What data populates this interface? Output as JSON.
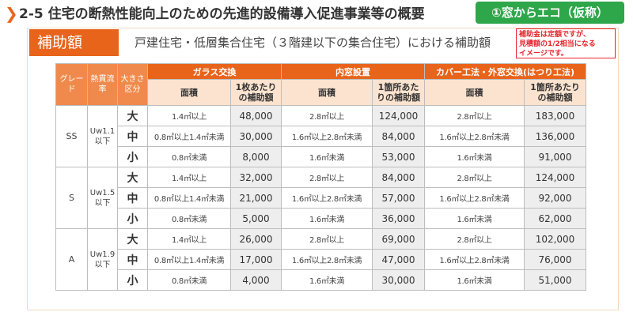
{
  "header": {
    "chevron": "❯",
    "title": "2-5 住宅の断熱性能向上のための先進的設備導入促進事業等の概要",
    "badge": "①窓からエコ（仮称）"
  },
  "note": {
    "lines": [
      "補助金は定額ですが、",
      "見積額の1/2相当になる",
      "イメージです。"
    ]
  },
  "section": {
    "tab": "補助額",
    "description": "戸建住宅・低層集合住宅（３階建以下の集合住宅）における補助額"
  },
  "table": {
    "col_grade": "グレード",
    "col_rate": "熱貫流率",
    "col_size": "大きさ区分",
    "groups": [
      {
        "label": "ガラス交換",
        "area_label": "面積",
        "amount_label": "1枚あたりの補助額"
      },
      {
        "label": "内窓設置",
        "area_label": "面積",
        "amount_label": "1箇所あたりの補助額"
      },
      {
        "label": "カバー工法・外窓交換(はつり工法)",
        "area_label": "面積",
        "amount_label": "1箇所あたりの補助額"
      }
    ],
    "grades": [
      {
        "grade": "SS",
        "rate": "Uw1.1以下",
        "rows": [
          {
            "size": "大",
            "cells": [
              {
                "area": "1.4㎡以上",
                "amount": "48,000"
              },
              {
                "area": "2.8㎡以上",
                "amount": "124,000"
              },
              {
                "area": "2.8㎡以上",
                "amount": "183,000"
              }
            ]
          },
          {
            "size": "中",
            "cells": [
              {
                "area": "0.8㎡以上1.4㎡未満",
                "amount": "30,000"
              },
              {
                "area": "1.6㎡以上2.8㎡未満",
                "amount": "84,000"
              },
              {
                "area": "1.6㎡以上2.8㎡未満",
                "amount": "136,000"
              }
            ]
          },
          {
            "size": "小",
            "cells": [
              {
                "area": "0.8㎡未満",
                "amount": "8,000"
              },
              {
                "area": "1.6㎡未満",
                "amount": "53,000"
              },
              {
                "area": "1.6㎡未満",
                "amount": "91,000"
              }
            ]
          }
        ]
      },
      {
        "grade": "S",
        "rate": "Uw1.5以下",
        "rows": [
          {
            "size": "大",
            "cells": [
              {
                "area": "1.4㎡以上",
                "amount": "32,000"
              },
              {
                "area": "2.8㎡以上",
                "amount": "84,000"
              },
              {
                "area": "2.8㎡以上",
                "amount": "124,000"
              }
            ]
          },
          {
            "size": "中",
            "cells": [
              {
                "area": "0.8㎡以上1.4㎡未満",
                "amount": "21,000"
              },
              {
                "area": "1.6㎡以上2.8㎡未満",
                "amount": "57,000"
              },
              {
                "area": "1.6㎡以上2.8㎡未満",
                "amount": "92,000"
              }
            ]
          },
          {
            "size": "小",
            "cells": [
              {
                "area": "0.8㎡未満",
                "amount": "5,000"
              },
              {
                "area": "1.6㎡未満",
                "amount": "36,000"
              },
              {
                "area": "1.6㎡未満",
                "amount": "62,000"
              }
            ]
          }
        ]
      },
      {
        "grade": "A",
        "rate": "Uw1.9以下",
        "rows": [
          {
            "size": "大",
            "cells": [
              {
                "area": "1.4㎡以上",
                "amount": "26,000"
              },
              {
                "area": "2.8㎡以上",
                "amount": "69,000"
              },
              {
                "area": "2.8㎡以上",
                "amount": "102,000"
              }
            ]
          },
          {
            "size": "中",
            "cells": [
              {
                "area": "0.8㎡以上1.4㎡未満",
                "amount": "17,000"
              },
              {
                "area": "1.6㎡以上2.8㎡未満",
                "amount": "47,000"
              },
              {
                "area": "1.6㎡以上2.8㎡未満",
                "amount": "76,000"
              }
            ]
          },
          {
            "size": "小",
            "cells": [
              {
                "area": "0.8㎡未満",
                "amount": "4,000"
              },
              {
                "area": "1.6㎡未満",
                "amount": "30,000"
              },
              {
                "area": "1.6㎡未満",
                "amount": "51,000"
              }
            ]
          }
        ]
      }
    ]
  }
}
